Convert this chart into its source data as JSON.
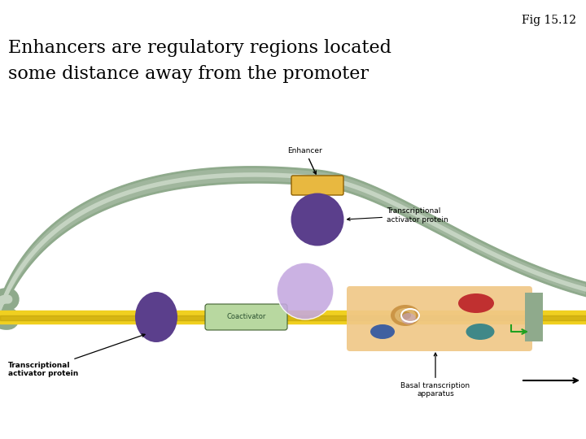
{
  "fig_label": "Fig 15.12",
  "title_line1": "Enhancers are regulatory regions located",
  "title_line2": "some distance away from the promoter",
  "bg_color": "#ffffff",
  "dna_color": "#f0d020",
  "dna_stripe_color": "#b09000",
  "chromatin_color": "#8faa8c",
  "chromatin_inner_color": "#c5d4c2",
  "enhancer_color": "#e8b840",
  "purple_dark": "#5b3f8c",
  "purple_light": "#c4a8e0",
  "coactivator_color": "#b8d8a0",
  "coactivator_text_color": "#2a5030",
  "basal_box_color": "#f0c888",
  "red_ellipse": "#c03030",
  "blue_ellipse": "#4060a0",
  "teal_ellipse": "#408888",
  "orange_ellipse": "#c87820",
  "green_arrow_color": "#20a020",
  "label_fontsize": 6.5,
  "title_fontsize": 16
}
